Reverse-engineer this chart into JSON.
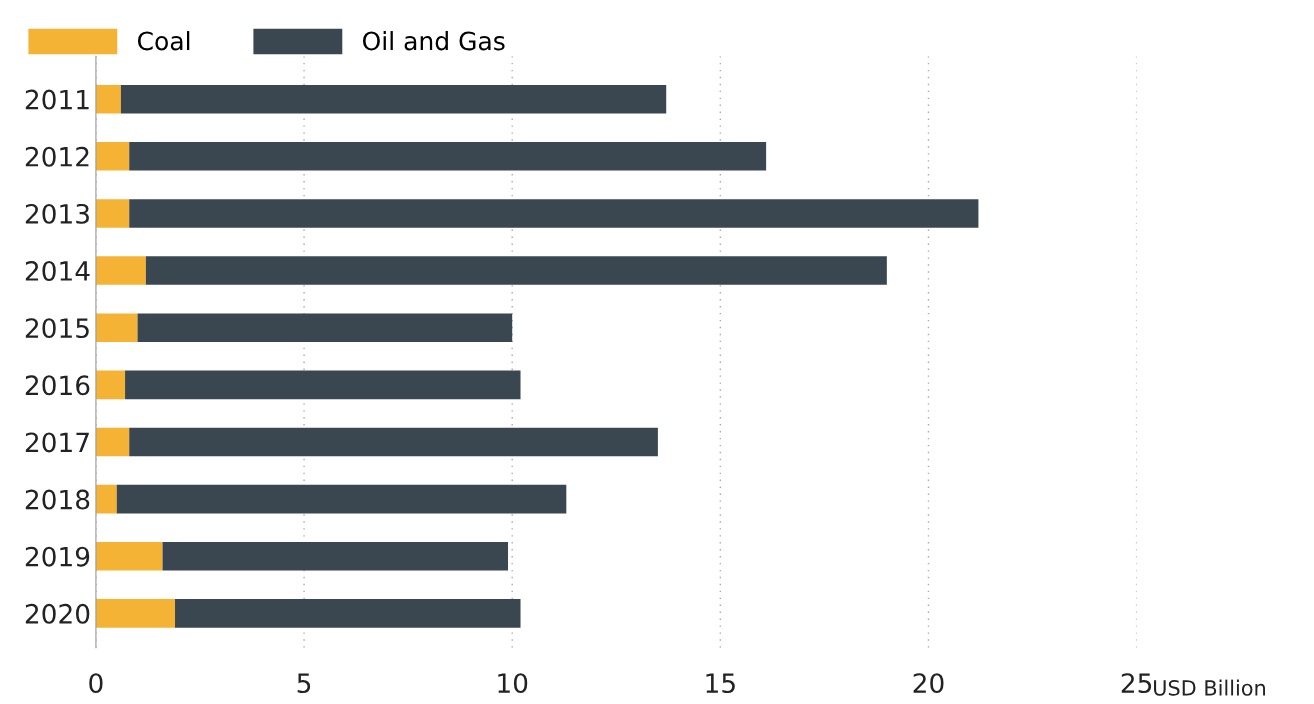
{
  "chart_data": {
    "type": "bar",
    "orientation": "horizontal",
    "stacked": true,
    "categories": [
      "2011",
      "2012",
      "2013",
      "2014",
      "2015",
      "2016",
      "2017",
      "2018",
      "2019",
      "2020"
    ],
    "series": [
      {
        "name": "Coal",
        "color": "#f5b335",
        "values": [
          0.6,
          0.8,
          0.8,
          1.2,
          1.0,
          0.7,
          0.8,
          0.5,
          1.6,
          1.9
        ]
      },
      {
        "name": "Oil and Gas",
        "color": "#3a4750",
        "values": [
          13.1,
          15.3,
          20.4,
          17.8,
          9.0,
          9.5,
          12.7,
          10.8,
          8.3,
          8.3
        ]
      }
    ],
    "xlabel": "USD Billion",
    "xlim": [
      0,
      25
    ],
    "xticks": [
      0,
      5,
      10,
      15,
      20,
      25
    ],
    "grid": "x",
    "legend": "top left"
  }
}
